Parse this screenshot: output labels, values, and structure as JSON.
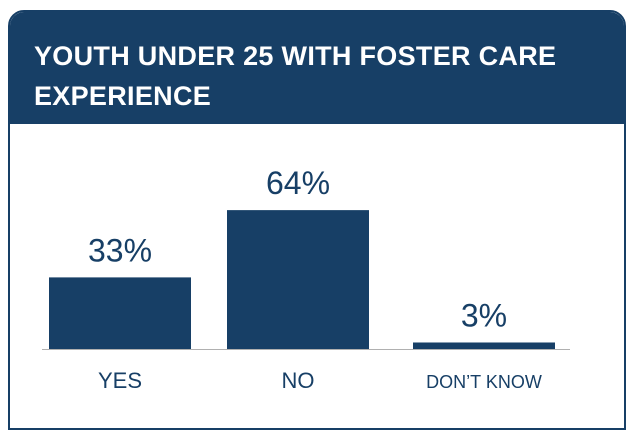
{
  "chart_data": {
    "type": "bar",
    "title": "YOUTH UNDER 25 WITH FOSTER CARE EXPERIENCE",
    "categories": [
      "YES",
      "NO",
      "DON’T KNOW"
    ],
    "values": [
      33,
      64,
      3
    ],
    "value_labels": [
      "33%",
      "64%",
      "3%"
    ],
    "color": "#173f66"
  }
}
